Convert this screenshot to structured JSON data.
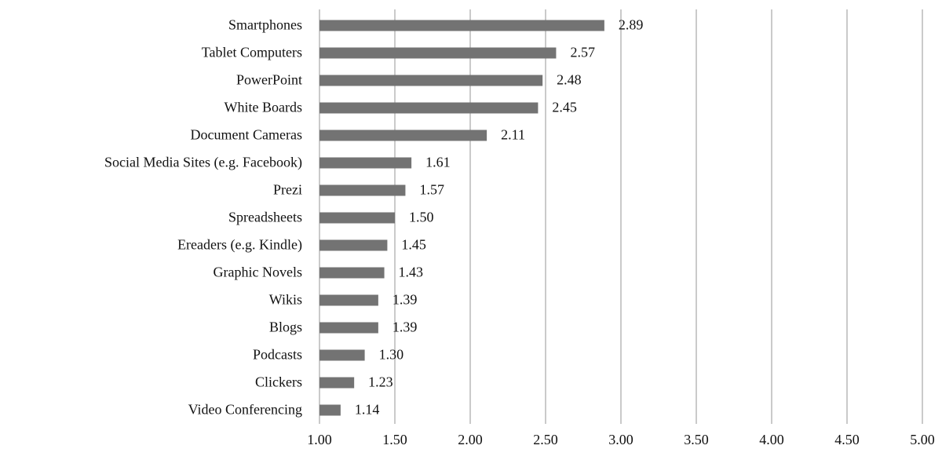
{
  "chart_data": {
    "type": "barh",
    "categories": [
      "Smartphones",
      "Tablet Computers",
      "PowerPoint",
      "White Boards",
      "Document Cameras",
      "Social Media Sites (e.g. Facebook)",
      "Prezi",
      "Spreadsheets",
      "Ereaders (e.g. Kindle)",
      "Graphic Novels",
      "Wikis",
      "Blogs",
      "Podcasts",
      "Clickers",
      "Video Conferencing"
    ],
    "values": [
      2.89,
      2.57,
      2.48,
      2.45,
      2.11,
      1.61,
      1.57,
      1.5,
      1.45,
      1.43,
      1.39,
      1.39,
      1.3,
      1.23,
      1.14
    ],
    "value_labels": [
      "2.89",
      "2.57",
      "2.48",
      "2.45",
      "2.11",
      "1.61",
      "1.57",
      "1.50",
      "1.45",
      "1.43",
      "1.39",
      "1.39",
      "1.30",
      "1.23",
      "1.14"
    ],
    "color": "#737373",
    "xlim": [
      1,
      5
    ],
    "xticks": [
      {
        "value": 1,
        "label": "1.00"
      },
      {
        "value": 1.5,
        "label": "1.50"
      },
      {
        "value": 2,
        "label": "2.00"
      },
      {
        "value": 2.5,
        "label": "2.50"
      },
      {
        "value": 3,
        "label": "3.00"
      },
      {
        "value": 3.5,
        "label": "3.50"
      },
      {
        "value": 4,
        "label": "4.00"
      },
      {
        "value": 4.5,
        "label": "4.50"
      },
      {
        "value": 5,
        "label": "5.00"
      }
    ],
    "grid": true
  }
}
